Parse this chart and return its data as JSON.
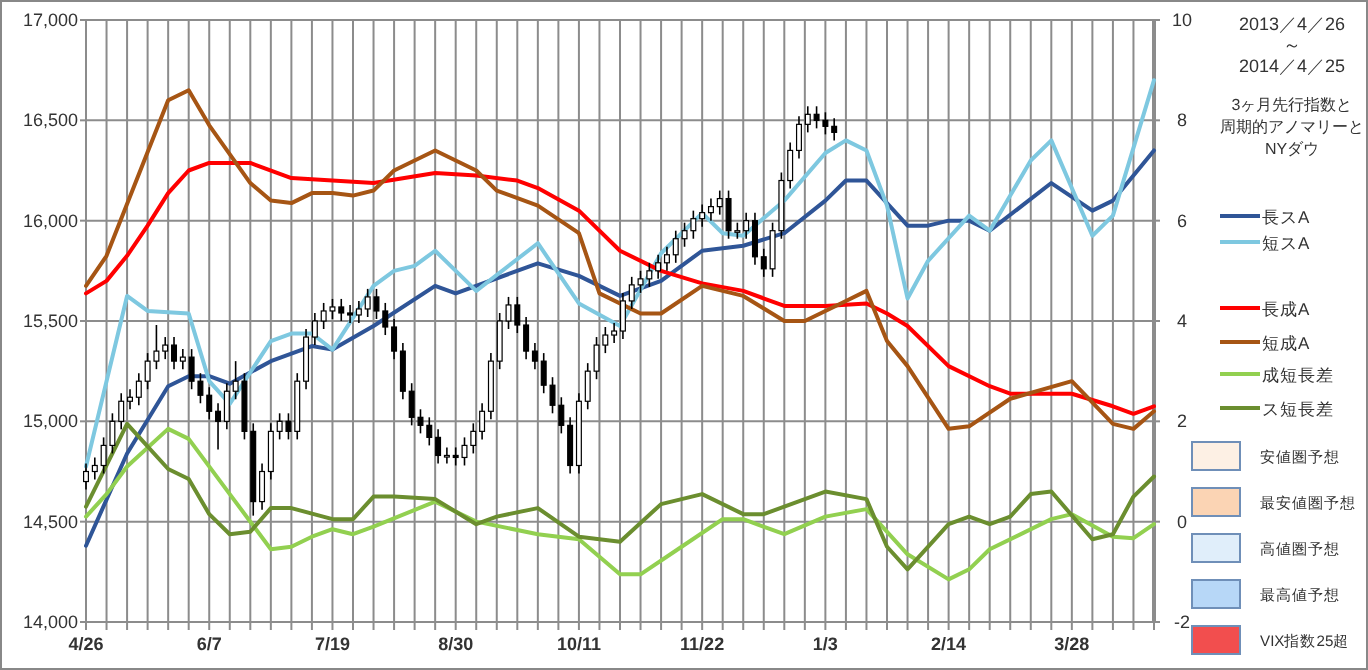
{
  "chart_data": {
    "type": "line",
    "title": "2013／4／26 ～ 2014／4／25",
    "subtitle": "3ヶ月先行指数と",
    "annotations": [
      "周期的アノマリーと",
      "NYダウ"
    ],
    "xlim": [
      "2013-04-26",
      "2014-04-25"
    ],
    "xticks": [
      {
        "value": "2013-04-26",
        "label": "4/26"
      },
      {
        "value": "2013-05-03",
        "label": null
      },
      {
        "value": "2013-05-10",
        "label": null
      },
      {
        "value": "2013-05-17",
        "label": null
      },
      {
        "value": "2013-05-24",
        "label": null
      },
      {
        "value": "2013-05-31",
        "label": null
      },
      {
        "value": "2013-06-07",
        "label": "6/7"
      },
      {
        "value": "2013-06-14",
        "label": null
      },
      {
        "value": "2013-06-21",
        "label": null
      },
      {
        "value": "2013-06-28",
        "label": null
      },
      {
        "value": "2013-07-05",
        "label": null
      },
      {
        "value": "2013-07-12",
        "label": null
      },
      {
        "value": "2013-07-19",
        "label": "7/19"
      },
      {
        "value": "2013-07-26",
        "label": null
      },
      {
        "value": "2013-08-02",
        "label": null
      },
      {
        "value": "2013-08-09",
        "label": null
      },
      {
        "value": "2013-08-16",
        "label": null
      },
      {
        "value": "2013-08-23",
        "label": null
      },
      {
        "value": "2013-08-30",
        "label": "8/30"
      },
      {
        "value": "2013-09-06",
        "label": null
      },
      {
        "value": "2013-09-13",
        "label": null
      },
      {
        "value": "2013-09-20",
        "label": null
      },
      {
        "value": "2013-09-27",
        "label": null
      },
      {
        "value": "2013-10-04",
        "label": null
      },
      {
        "value": "2013-10-11",
        "label": "10/11"
      },
      {
        "value": "2013-10-18",
        "label": null
      },
      {
        "value": "2013-10-25",
        "label": null
      },
      {
        "value": "2013-11-01",
        "label": null
      },
      {
        "value": "2013-11-08",
        "label": null
      },
      {
        "value": "2013-11-15",
        "label": null
      },
      {
        "value": "2013-11-22",
        "label": "11/22"
      },
      {
        "value": "2013-11-29",
        "label": null
      },
      {
        "value": "2013-12-06",
        "label": null
      },
      {
        "value": "2013-12-13",
        "label": null
      },
      {
        "value": "2013-12-20",
        "label": null
      },
      {
        "value": "2013-12-27",
        "label": null
      },
      {
        "value": "2014-01-03",
        "label": "1/3"
      },
      {
        "value": "2014-01-10",
        "label": null
      },
      {
        "value": "2014-01-17",
        "label": null
      },
      {
        "value": "2014-01-24",
        "label": null
      },
      {
        "value": "2014-01-31",
        "label": null
      },
      {
        "value": "2014-02-07",
        "label": null
      },
      {
        "value": "2014-02-14",
        "label": "2/14"
      },
      {
        "value": "2014-02-21",
        "label": null
      },
      {
        "value": "2014-02-28",
        "label": null
      },
      {
        "value": "2014-03-07",
        "label": null
      },
      {
        "value": "2014-03-14",
        "label": null
      },
      {
        "value": "2014-03-21",
        "label": null
      },
      {
        "value": "2014-03-28",
        "label": "3/28"
      },
      {
        "value": "2014-04-04",
        "label": null
      },
      {
        "value": "2014-04-11",
        "label": null
      },
      {
        "value": "2014-04-18",
        "label": null
      },
      {
        "value": "2014-04-25",
        "label": null
      }
    ],
    "ylim": [
      14000,
      17000
    ],
    "yticks": [
      {
        "value": 14000,
        "label": "14,000"
      },
      {
        "value": 14500,
        "label": "14,500"
      },
      {
        "value": 15000,
        "label": "15,000"
      },
      {
        "value": 15500,
        "label": "15,500"
      },
      {
        "value": 16000,
        "label": "16,000"
      },
      {
        "value": 16500,
        "label": "16,500"
      },
      {
        "value": 17000,
        "label": "17,000"
      }
    ],
    "y2lim": [
      -2,
      10
    ],
    "y2ticks": [
      -2,
      0,
      2,
      4,
      6,
      8,
      10
    ],
    "grid": true,
    "legend": "right",
    "series": [
      {
        "type": "candlestick",
        "color": "#000000",
        "x": [
          "2013-04-26",
          "2013-04-29",
          "2013-05-02",
          "2013-05-05",
          "2013-05-08",
          "2013-05-11",
          "2013-05-14",
          "2013-05-17",
          "2013-05-20",
          "2013-05-23",
          "2013-05-26",
          "2013-05-29",
          "2013-06-01",
          "2013-06-04",
          "2013-06-07",
          "2013-06-10",
          "2013-06-13",
          "2013-06-16",
          "2013-06-19",
          "2013-06-22",
          "2013-06-25",
          "2013-06-28",
          "2013-07-01",
          "2013-07-04",
          "2013-07-07",
          "2013-07-10",
          "2013-07-13",
          "2013-07-16",
          "2013-07-19",
          "2013-07-22",
          "2013-07-25",
          "2013-07-28",
          "2013-07-31",
          "2013-08-03",
          "2013-08-06",
          "2013-08-09",
          "2013-08-12",
          "2013-08-15",
          "2013-08-18",
          "2013-08-21",
          "2013-08-24",
          "2013-08-27",
          "2013-08-30",
          "2013-09-02",
          "2013-09-05",
          "2013-09-08",
          "2013-09-11",
          "2013-09-14",
          "2013-09-17",
          "2013-09-20",
          "2013-09-23",
          "2013-09-26",
          "2013-09-29",
          "2013-10-02",
          "2013-10-05",
          "2013-10-08",
          "2013-10-11",
          "2013-10-14",
          "2013-10-17",
          "2013-10-20",
          "2013-10-23",
          "2013-10-26",
          "2013-10-29",
          "2013-11-01",
          "2013-11-04",
          "2013-11-07",
          "2013-11-10",
          "2013-11-13",
          "2013-11-16",
          "2013-11-19",
          "2013-11-22",
          "2013-11-25",
          "2013-11-28",
          "2013-12-01",
          "2013-12-04",
          "2013-12-07",
          "2013-12-10",
          "2013-12-13",
          "2013-12-16",
          "2013-12-19",
          "2013-12-22",
          "2013-12-25",
          "2013-12-28",
          "2013-12-31",
          "2014-01-03",
          "2014-01-06"
        ],
        "ohlc": [
          [
            14700,
            14790,
            14660,
            14750
          ],
          [
            14750,
            14820,
            14710,
            14780
          ],
          [
            14780,
            14920,
            14740,
            14880
          ],
          [
            14880,
            15040,
            14840,
            15000
          ],
          [
            15000,
            15140,
            14960,
            15100
          ],
          [
            15100,
            15160,
            15060,
            15120
          ],
          [
            15120,
            15240,
            15080,
            15200
          ],
          [
            15200,
            15340,
            15160,
            15300
          ],
          [
            15300,
            15480,
            15260,
            15350
          ],
          [
            15350,
            15420,
            15310,
            15380
          ],
          [
            15380,
            15420,
            15260,
            15300
          ],
          [
            15300,
            15360,
            15260,
            15320
          ],
          [
            15320,
            15360,
            15160,
            15200
          ],
          [
            15200,
            15240,
            15090,
            15130
          ],
          [
            15130,
            15170,
            15010,
            15050
          ],
          [
            15050,
            15090,
            14860,
            15000
          ],
          [
            15000,
            15190,
            14960,
            15150
          ],
          [
            15150,
            15300,
            15110,
            15200
          ],
          [
            15200,
            15240,
            14910,
            14950
          ],
          [
            14950,
            14990,
            14530,
            14600
          ],
          [
            14600,
            14790,
            14560,
            14750
          ],
          [
            14750,
            14990,
            14710,
            14950
          ],
          [
            14950,
            15040,
            14910,
            15000
          ],
          [
            15000,
            15040,
            14910,
            14950
          ],
          [
            14950,
            15240,
            14910,
            15200
          ],
          [
            15200,
            15460,
            15160,
            15420
          ],
          [
            15420,
            15540,
            15380,
            15500
          ],
          [
            15500,
            15590,
            15460,
            15550
          ],
          [
            15550,
            15610,
            15510,
            15570
          ],
          [
            15570,
            15610,
            15500,
            15540
          ],
          [
            15540,
            15580,
            15490,
            15530
          ],
          [
            15530,
            15600,
            15490,
            15560
          ],
          [
            15560,
            15660,
            15520,
            15620
          ],
          [
            15620,
            15660,
            15510,
            15550
          ],
          [
            15550,
            15590,
            15430,
            15470
          ],
          [
            15470,
            15510,
            15310,
            15350
          ],
          [
            15350,
            15390,
            15110,
            15150
          ],
          [
            15150,
            15190,
            14980,
            15020
          ],
          [
            15020,
            15060,
            14940,
            14980
          ],
          [
            14980,
            15020,
            14880,
            14920
          ],
          [
            14920,
            14960,
            14790,
            14830
          ],
          [
            14830,
            14870,
            14790,
            14830
          ],
          [
            14830,
            14870,
            14780,
            14820
          ],
          [
            14820,
            14920,
            14780,
            14880
          ],
          [
            14880,
            14990,
            14840,
            14950
          ],
          [
            14950,
            15090,
            14910,
            15050
          ],
          [
            15050,
            15340,
            15010,
            15300
          ],
          [
            15300,
            15540,
            15260,
            15500
          ],
          [
            15500,
            15620,
            15460,
            15580
          ],
          [
            15580,
            15620,
            15440,
            15480
          ],
          [
            15480,
            15520,
            15310,
            15350
          ],
          [
            15350,
            15390,
            15260,
            15300
          ],
          [
            15300,
            15340,
            15140,
            15180
          ],
          [
            15180,
            15220,
            15040,
            15080
          ],
          [
            15080,
            15120,
            14940,
            14980
          ],
          [
            14980,
            15020,
            14740,
            14780
          ],
          [
            14780,
            15140,
            14740,
            15100
          ],
          [
            15100,
            15290,
            15060,
            15250
          ],
          [
            15250,
            15420,
            15210,
            15380
          ],
          [
            15380,
            15470,
            15340,
            15430
          ],
          [
            15430,
            15490,
            15390,
            15450
          ],
          [
            15450,
            15640,
            15410,
            15600
          ],
          [
            15600,
            15720,
            15560,
            15680
          ],
          [
            15680,
            15750,
            15640,
            15710
          ],
          [
            15710,
            15790,
            15670,
            15750
          ],
          [
            15750,
            15830,
            15710,
            15790
          ],
          [
            15790,
            15870,
            15750,
            15830
          ],
          [
            15830,
            15950,
            15790,
            15910
          ],
          [
            15910,
            15990,
            15870,
            15950
          ],
          [
            15950,
            16050,
            15910,
            16010
          ],
          [
            16010,
            16080,
            15970,
            16040
          ],
          [
            16040,
            16110,
            16000,
            16070
          ],
          [
            16070,
            16150,
            16030,
            16110
          ],
          [
            16110,
            16150,
            15910,
            15950
          ],
          [
            15950,
            15990,
            15910,
            15950
          ],
          [
            15950,
            16040,
            15910,
            16000
          ],
          [
            16000,
            16040,
            15780,
            15820
          ],
          [
            15820,
            15860,
            15720,
            15760
          ],
          [
            15760,
            15990,
            15720,
            15950
          ],
          [
            15950,
            16240,
            15910,
            16200
          ],
          [
            16200,
            16390,
            16160,
            16350
          ],
          [
            16350,
            16520,
            16310,
            16480
          ],
          [
            16480,
            16570,
            16440,
            16530
          ],
          [
            16530,
            16570,
            16460,
            16500
          ],
          [
            16500,
            16540,
            16430,
            16470
          ],
          [
            16470,
            16510,
            16400,
            16440
          ]
        ]
      },
      {
        "name": "長スA",
        "axis": "y2",
        "color": "#2f5597",
        "x": [
          "2013-04-26",
          "2013-05-10",
          "2013-05-24",
          "2013-05-31",
          "2013-06-07",
          "2013-06-14",
          "2013-06-28",
          "2013-07-12",
          "2013-07-19",
          "2013-08-02",
          "2013-08-23",
          "2013-08-30",
          "2013-09-27",
          "2013-10-11",
          "2013-10-25",
          "2013-11-08",
          "2013-11-22",
          "2013-12-06",
          "2013-12-20",
          "2014-01-03",
          "2014-01-10",
          "2014-01-17",
          "2014-01-31",
          "2014-02-07",
          "2014-02-14",
          "2014-02-21",
          "2014-02-28",
          "2014-03-21",
          "2014-04-04",
          "2014-04-11",
          "2014-04-25"
        ],
        "values": [
          -0.48,
          1.36,
          2.7,
          2.9,
          2.9,
          2.75,
          3.2,
          3.5,
          3.43,
          3.9,
          4.7,
          4.55,
          5.15,
          4.9,
          4.5,
          4.8,
          5.4,
          5.5,
          5.75,
          6.4,
          6.8,
          6.8,
          5.9,
          5.9,
          6.0,
          6.0,
          5.8,
          6.75,
          6.2,
          6.4,
          7.4
        ]
      },
      {
        "name": "短スA",
        "axis": "y2",
        "color": "#7ec8e0",
        "x": [
          "2013-04-26",
          "2013-05-10",
          "2013-05-17",
          "2013-05-31",
          "2013-06-07",
          "2013-06-14",
          "2013-06-28",
          "2013-07-05",
          "2013-07-12",
          "2013-07-19",
          "2013-08-02",
          "2013-08-09",
          "2013-08-16",
          "2013-08-23",
          "2013-09-06",
          "2013-09-27",
          "2013-10-11",
          "2013-10-25",
          "2013-11-08",
          "2013-11-22",
          "2013-11-29",
          "2013-12-06",
          "2013-12-20",
          "2014-01-03",
          "2014-01-10",
          "2014-01-17",
          "2014-01-24",
          "2014-01-31",
          "2014-02-07",
          "2014-02-21",
          "2014-02-28",
          "2014-03-14",
          "2014-03-21",
          "2014-04-04",
          "2014-04-11",
          "2014-04-25"
        ],
        "values": [
          1.1,
          4.5,
          4.2,
          4.15,
          2.8,
          2.35,
          3.6,
          3.75,
          3.75,
          3.43,
          4.7,
          5.0,
          5.1,
          5.4,
          4.6,
          5.55,
          4.35,
          3.9,
          5.35,
          6.15,
          5.75,
          5.7,
          6.4,
          7.35,
          7.6,
          7.4,
          6.3,
          4.45,
          5.2,
          6.1,
          5.8,
          7.2,
          7.6,
          5.7,
          6.1,
          8.8
        ]
      },
      {
        "name": "長成A",
        "axis": "y2",
        "color": "#ff0000",
        "x": [
          "2013-04-26",
          "2013-05-03",
          "2013-05-10",
          "2013-05-17",
          "2013-05-24",
          "2013-05-31",
          "2013-06-07",
          "2013-06-21",
          "2013-07-05",
          "2013-07-19",
          "2013-08-02",
          "2013-08-23",
          "2013-09-06",
          "2013-09-20",
          "2013-09-27",
          "2013-10-11",
          "2013-10-25",
          "2013-11-08",
          "2013-11-22",
          "2013-12-06",
          "2013-12-20",
          "2014-01-03",
          "2014-01-17",
          "2014-01-24",
          "2014-01-31",
          "2014-02-14",
          "2014-02-28",
          "2014-03-07",
          "2014-03-28",
          "2014-04-11",
          "2014-04-18",
          "2014-04-25"
        ],
        "values": [
          4.55,
          4.8,
          5.3,
          5.9,
          6.55,
          7.0,
          7.15,
          7.15,
          6.85,
          6.8,
          6.75,
          6.95,
          6.9,
          6.8,
          6.65,
          6.2,
          5.4,
          5.0,
          4.75,
          4.6,
          4.3,
          4.3,
          4.35,
          4.15,
          3.9,
          3.1,
          2.7,
          2.55,
          2.55,
          2.3,
          2.15,
          2.3
        ]
      },
      {
        "name": "短成A",
        "axis": "y2",
        "color": "#a65514",
        "x": [
          "2013-04-26",
          "2013-05-03",
          "2013-05-24",
          "2013-05-31",
          "2013-06-07",
          "2013-06-21",
          "2013-06-28",
          "2013-07-05",
          "2013-07-12",
          "2013-07-19",
          "2013-07-26",
          "2013-08-02",
          "2013-08-09",
          "2013-08-23",
          "2013-08-30",
          "2013-09-06",
          "2013-09-13",
          "2013-09-27",
          "2013-10-11",
          "2013-10-18",
          "2013-11-01",
          "2013-11-08",
          "2013-11-22",
          "2013-12-06",
          "2013-12-20",
          "2013-12-27",
          "2014-01-10",
          "2014-01-17",
          "2014-01-24",
          "2014-01-31",
          "2014-02-14",
          "2014-02-21",
          "2014-03-07",
          "2014-03-28",
          "2014-04-11",
          "2014-04-18",
          "2014-04-25"
        ],
        "values": [
          4.7,
          5.3,
          8.4,
          8.6,
          7.9,
          6.75,
          6.4,
          6.35,
          6.55,
          6.55,
          6.5,
          6.6,
          7.0,
          7.4,
          7.2,
          7.0,
          6.6,
          6.3,
          5.75,
          4.55,
          4.15,
          4.15,
          4.7,
          4.5,
          4.0,
          4.0,
          4.4,
          4.6,
          3.6,
          3.1,
          1.85,
          1.9,
          2.45,
          2.8,
          1.95,
          1.85,
          2.2
        ]
      },
      {
        "name": "成短長差",
        "axis": "y2",
        "color": "#92d050",
        "x": [
          "2013-04-26",
          "2013-05-03",
          "2013-05-10",
          "2013-05-24",
          "2013-05-31",
          "2013-06-14",
          "2013-06-28",
          "2013-07-05",
          "2013-07-12",
          "2013-07-19",
          "2013-07-26",
          "2013-08-02",
          "2013-08-23",
          "2013-09-06",
          "2013-09-27",
          "2013-10-11",
          "2013-10-25",
          "2013-11-01",
          "2013-11-15",
          "2013-11-29",
          "2013-12-06",
          "2013-12-20",
          "2014-01-03",
          "2014-01-17",
          "2014-01-31",
          "2014-02-14",
          "2014-02-21",
          "2014-02-28",
          "2014-03-21",
          "2014-03-28",
          "2014-04-11",
          "2014-04-18",
          "2014-04-25"
        ],
        "values": [
          0.1,
          0.55,
          1.1,
          1.85,
          1.65,
          0.55,
          -0.55,
          -0.5,
          -0.3,
          -0.15,
          -0.25,
          -0.1,
          0.4,
          0.0,
          -0.25,
          -0.35,
          -1.05,
          -1.05,
          -0.5,
          0.05,
          0.05,
          -0.25,
          0.1,
          0.25,
          -0.65,
          -1.15,
          -0.95,
          -0.55,
          0.05,
          0.15,
          -0.3,
          -0.33,
          -0.05
        ]
      },
      {
        "name": "ス短長差",
        "axis": "y2",
        "color": "#6b8e2f",
        "x": [
          "2013-04-26",
          "2013-05-10",
          "2013-05-24",
          "2013-05-31",
          "2013-06-07",
          "2013-06-14",
          "2013-06-21",
          "2013-06-28",
          "2013-07-05",
          "2013-07-19",
          "2013-07-26",
          "2013-08-02",
          "2013-08-09",
          "2013-08-23",
          "2013-09-06",
          "2013-09-13",
          "2013-09-27",
          "2013-10-11",
          "2013-10-25",
          "2013-11-08",
          "2013-11-22",
          "2013-12-06",
          "2013-12-13",
          "2014-01-03",
          "2014-01-17",
          "2014-01-24",
          "2014-01-31",
          "2014-02-14",
          "2014-02-21",
          "2014-02-28",
          "2014-03-07",
          "2014-03-14",
          "2014-03-21",
          "2014-04-04",
          "2014-04-11",
          "2014-04-18",
          "2014-04-25"
        ],
        "values": [
          0.3,
          1.95,
          1.05,
          0.85,
          0.15,
          -0.25,
          -0.2,
          0.27,
          0.27,
          0.05,
          0.05,
          0.5,
          0.5,
          0.45,
          -0.05,
          0.1,
          0.27,
          -0.3,
          -0.4,
          0.35,
          0.55,
          0.15,
          0.15,
          0.6,
          0.45,
          -0.5,
          -0.95,
          -0.05,
          0.1,
          -0.05,
          0.1,
          0.55,
          0.6,
          -0.35,
          -0.25,
          0.5,
          0.9
        ]
      },
      {
        "name": "安値圏予想",
        "type": "area",
        "color": "#fdf0e4"
      },
      {
        "name": "最安値圏予想",
        "type": "area",
        "color": "#fbd4b4"
      },
      {
        "name": "高値圏予想",
        "type": "area",
        "color": "#e0eefa"
      },
      {
        "name": "最高値予想",
        "type": "area",
        "color": "#b7d7f7"
      },
      {
        "name": "VIX指数25超",
        "type": "area",
        "color": "#f24e4e"
      }
    ]
  }
}
